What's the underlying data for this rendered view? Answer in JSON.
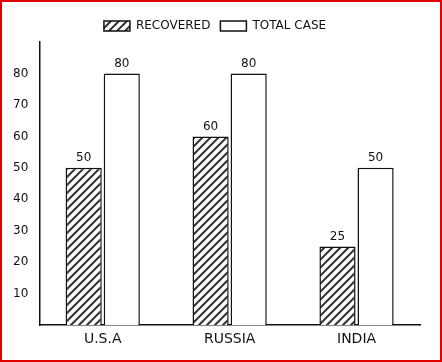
{
  "chart_data": {
    "type": "bar",
    "categories": [
      "U.S.A",
      "RUSSIA",
      "INDIA"
    ],
    "series": [
      {
        "name": "RECOVERED",
        "color": "#333333",
        "values": [
          50,
          60,
          25
        ]
      },
      {
        "name": "TOTAL CASE",
        "color": "#ffffff",
        "values": [
          80,
          80,
          50
        ]
      }
    ],
    "ylim": [
      0,
      90
    ],
    "yticks": [
      10,
      20,
      30,
      40,
      50,
      60,
      70,
      80
    ],
    "grid": false,
    "legend": "top",
    "data_labels": true
  }
}
